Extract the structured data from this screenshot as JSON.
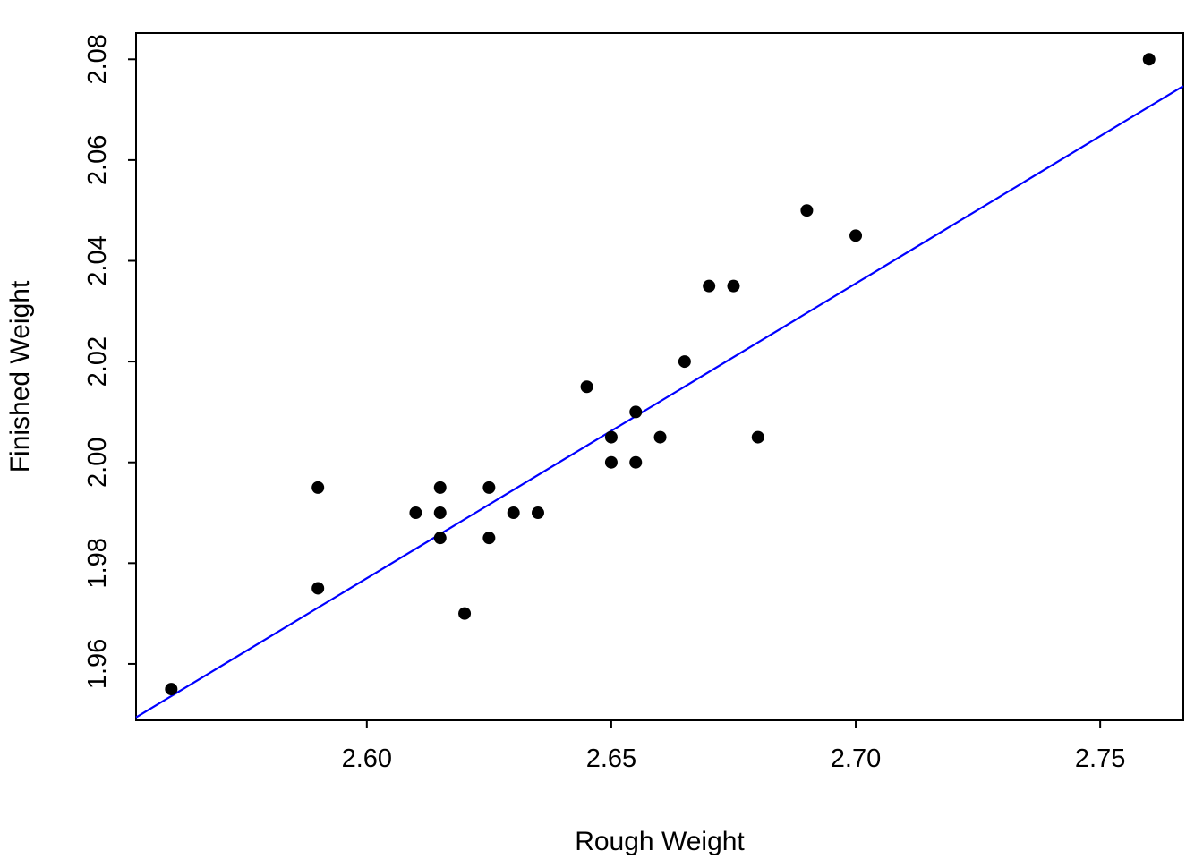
{
  "chart_data": {
    "type": "scatter",
    "title": "",
    "xlabel": "Rough Weight",
    "ylabel": "Finished Weight",
    "xlim": [
      2.5528,
      2.767
    ],
    "ylim": [
      1.9488,
      2.0852
    ],
    "x_ticks": [
      2.6,
      2.65,
      2.7,
      2.75
    ],
    "x_tick_labels": [
      "2.60",
      "2.65",
      "2.70",
      "2.75"
    ],
    "y_ticks": [
      1.96,
      1.98,
      2.0,
      2.02,
      2.04,
      2.06,
      2.08
    ],
    "y_tick_labels": [
      "1.96",
      "1.98",
      "2.00",
      "2.02",
      "2.04",
      "2.06",
      "2.08"
    ],
    "grid": false,
    "legend": null,
    "point_style": {
      "color": "#000000",
      "radius": 7,
      "shape": "filled-circle"
    },
    "points": [
      [
        2.56,
        1.955
      ],
      [
        2.59,
        1.975
      ],
      [
        2.59,
        1.995
      ],
      [
        2.61,
        1.99
      ],
      [
        2.615,
        1.995
      ],
      [
        2.615,
        1.99
      ],
      [
        2.615,
        1.985
      ],
      [
        2.62,
        1.97
      ],
      [
        2.625,
        1.995
      ],
      [
        2.625,
        1.985
      ],
      [
        2.63,
        1.99
      ],
      [
        2.635,
        1.99
      ],
      [
        2.645,
        2.015
      ],
      [
        2.65,
        2.005
      ],
      [
        2.65,
        2.0
      ],
      [
        2.655,
        2.01
      ],
      [
        2.655,
        2.0
      ],
      [
        2.66,
        2.005
      ],
      [
        2.665,
        2.02
      ],
      [
        2.67,
        2.035
      ],
      [
        2.675,
        2.035
      ],
      [
        2.68,
        2.005
      ],
      [
        2.69,
        2.05
      ],
      [
        2.7,
        2.045
      ],
      [
        2.76,
        2.08
      ]
    ],
    "fit_line": {
      "type": "linear",
      "slope": 0.585,
      "intercept": 0.456,
      "color": "#0000FF"
    }
  },
  "colors": {
    "background": "#FFFFFF",
    "axis": "#000000",
    "points": "#000000",
    "regression_line": "#0000FF"
  }
}
